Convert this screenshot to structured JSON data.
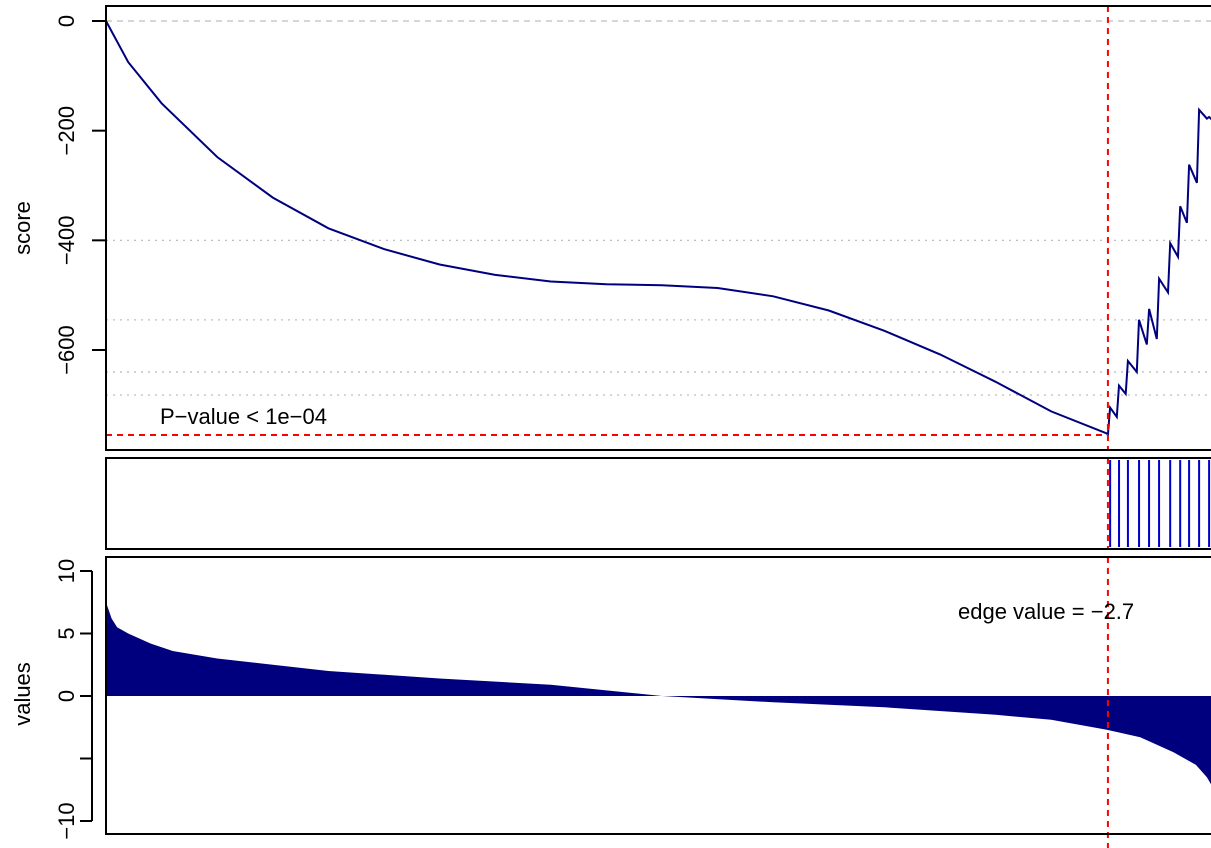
{
  "colors": {
    "line": "#00007f",
    "fill": "#00007f",
    "edge": "#ff0000",
    "grid": "#bebebe",
    "frame": "#000000"
  },
  "chart_data": [
    {
      "type": "line",
      "panel": "score",
      "ylabel": "score",
      "xlabel": "",
      "ylim": [
        -760,
        20
      ],
      "xlim": [
        0,
        1
      ],
      "yticks": [
        0,
        -200,
        -400,
        -600
      ],
      "ytick_labels": [
        "0",
        "−200",
        "−400",
        "−600"
      ],
      "annotation": "P−value < 1e−04",
      "hlines": [
        0,
        -400,
        -545,
        -640,
        -682
      ],
      "min_score": -755,
      "edge_x": 0.901,
      "series": [
        {
          "x": [
            0,
            0.02,
            0.05,
            0.1,
            0.15,
            0.2,
            0.25,
            0.3,
            0.35,
            0.4,
            0.45,
            0.5,
            0.55,
            0.6,
            0.65,
            0.7,
            0.75,
            0.8,
            0.85,
            0.9,
            0.901,
            0.903,
            0.909,
            0.911,
            0.917,
            0.919,
            0.927,
            0.929,
            0.936,
            0.938,
            0.945,
            0.947,
            0.955,
            0.957,
            0.964,
            0.966,
            0.972,
            0.974,
            0.981,
            0.983,
            0.99,
            0.992,
            1.0
          ],
          "values": [
            0,
            -75,
            -150,
            -248,
            -322,
            -378,
            -416,
            -444,
            -463,
            -475,
            -480,
            -482,
            -487,
            -502,
            -528,
            -565,
            -608,
            -658,
            -712,
            -752,
            -755,
            -705,
            -722,
            -665,
            -680,
            -620,
            -640,
            -545,
            -590,
            -525,
            -580,
            -470,
            -495,
            -405,
            -430,
            -338,
            -368,
            -262,
            -295,
            -162,
            -178,
            -175,
            -190
          ]
        }
      ]
    },
    {
      "type": "barcode",
      "panel": "hits",
      "hit_positions": [
        0.903,
        0.911,
        0.919,
        0.929,
        0.938,
        0.947,
        0.957,
        0.966,
        0.974,
        0.983,
        0.992,
        1.0
      ]
    },
    {
      "type": "area",
      "panel": "values",
      "ylabel": "values",
      "xlabel": "",
      "ylim": [
        -11,
        11
      ],
      "yticks": [
        10,
        5,
        0,
        -5,
        -10
      ],
      "ytick_labels": [
        "10",
        "5",
        "0",
        "",
        "−10"
      ],
      "annotation": "edge value =  −2.7",
      "edge_value": -2.7,
      "series": [
        {
          "x": [
            0,
            0.005,
            0.01,
            0.02,
            0.04,
            0.06,
            0.1,
            0.15,
            0.2,
            0.3,
            0.4,
            0.5,
            0.6,
            0.7,
            0.8,
            0.85,
            0.9,
            0.93,
            0.96,
            0.98,
            0.99,
            1.0
          ],
          "values": [
            7.5,
            6.2,
            5.5,
            5.0,
            4.2,
            3.6,
            3.0,
            2.5,
            2.0,
            1.4,
            0.9,
            0.0,
            -0.5,
            -0.9,
            -1.5,
            -1.9,
            -2.7,
            -3.3,
            -4.5,
            -5.5,
            -6.5,
            -8.0
          ]
        }
      ]
    }
  ]
}
